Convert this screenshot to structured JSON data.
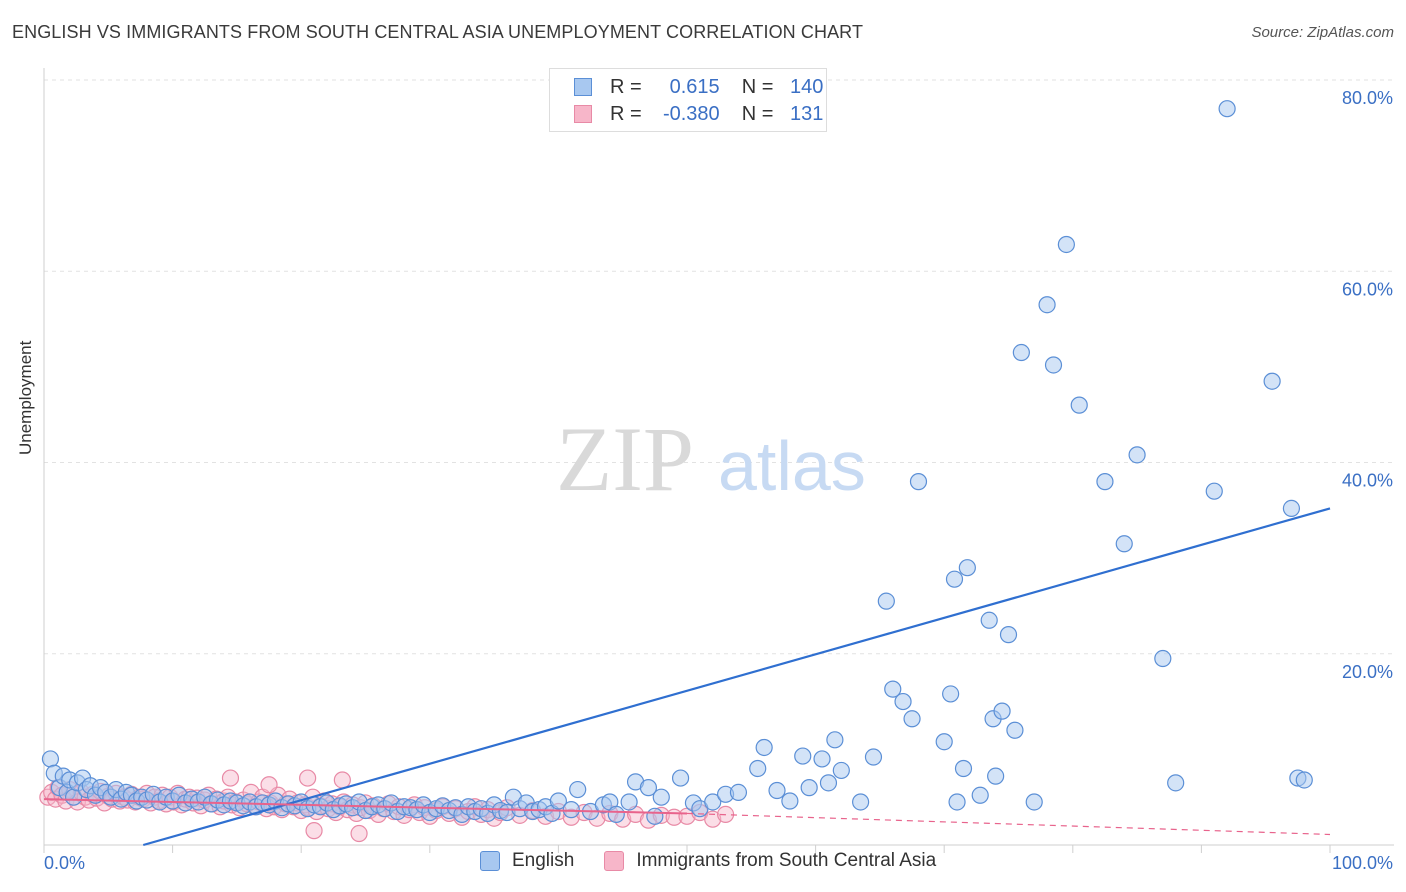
{
  "title": "ENGLISH VS IMMIGRANTS FROM SOUTH CENTRAL ASIA UNEMPLOYMENT CORRELATION CHART",
  "source": "Source: ZipAtlas.com",
  "watermark": "ZIPatlas",
  "colors": {
    "english_fill": "#a8c8f0",
    "english_stroke": "#5b8fd6",
    "english_line": "#2f6fd0",
    "immig_fill": "#f7b6c9",
    "immig_stroke": "#e88aa6",
    "immig_line": "#e8638c",
    "tick_label": "#3a6fc4",
    "grid": "#e2e2e2"
  },
  "legend_top": {
    "rows": [
      {
        "r_label": "R =",
        "r_value": "0.615",
        "n_label": "N =",
        "n_value": "140"
      },
      {
        "r_label": "R =",
        "r_value": "-0.380",
        "n_label": "N =",
        "n_value": "131"
      }
    ]
  },
  "legend_bottom": [
    "English",
    "Immigrants from South Central Asia"
  ],
  "chart_data": {
    "type": "scatter",
    "xlabel": "",
    "ylabel": "Unemployment",
    "xlim": [
      0,
      100
    ],
    "ylim": [
      0,
      82
    ],
    "x_tick_labels": {
      "left": "0.0%",
      "right": "100.0%"
    },
    "y_ticks": [
      20,
      40,
      60,
      80
    ],
    "y_tick_labels": [
      "20.0%",
      "40.0%",
      "60.0%",
      "80.0%"
    ],
    "grid": true,
    "series": [
      {
        "name": "English",
        "points": [
          [
            0.5,
            9.0
          ],
          [
            0.8,
            7.5
          ],
          [
            1.2,
            6.0
          ],
          [
            1.5,
            7.2
          ],
          [
            1.8,
            5.5
          ],
          [
            2.0,
            6.8
          ],
          [
            2.3,
            5.0
          ],
          [
            2.6,
            6.5
          ],
          [
            3.0,
            7.0
          ],
          [
            3.3,
            5.8
          ],
          [
            3.6,
            6.2
          ],
          [
            4.0,
            5.2
          ],
          [
            4.4,
            6.0
          ],
          [
            4.8,
            5.5
          ],
          [
            5.2,
            5.0
          ],
          [
            5.6,
            5.8
          ],
          [
            6.0,
            4.8
          ],
          [
            6.4,
            5.5
          ],
          [
            6.8,
            5.2
          ],
          [
            7.2,
            4.6
          ],
          [
            7.6,
            5.0
          ],
          [
            8.0,
            4.7
          ],
          [
            8.5,
            5.3
          ],
          [
            9.0,
            4.5
          ],
          [
            9.5,
            5.0
          ],
          [
            10.0,
            4.6
          ],
          [
            10.5,
            5.2
          ],
          [
            11.0,
            4.4
          ],
          [
            11.5,
            4.8
          ],
          [
            12.0,
            4.5
          ],
          [
            12.5,
            5.0
          ],
          [
            13.0,
            4.3
          ],
          [
            13.5,
            4.7
          ],
          [
            14.0,
            4.2
          ],
          [
            14.5,
            4.6
          ],
          [
            15.0,
            4.4
          ],
          [
            15.5,
            4.1
          ],
          [
            16.0,
            4.5
          ],
          [
            16.5,
            4.0
          ],
          [
            17.0,
            4.4
          ],
          [
            17.5,
            4.2
          ],
          [
            18.0,
            4.6
          ],
          [
            18.5,
            3.9
          ],
          [
            19.0,
            4.3
          ],
          [
            19.5,
            4.1
          ],
          [
            20.0,
            4.5
          ],
          [
            20.5,
            3.8
          ],
          [
            21.0,
            4.2
          ],
          [
            21.5,
            4.0
          ],
          [
            22.0,
            4.4
          ],
          [
            22.5,
            3.7
          ],
          [
            23.0,
            4.1
          ],
          [
            23.5,
            4.3
          ],
          [
            24.0,
            3.9
          ],
          [
            24.5,
            4.5
          ],
          [
            25.0,
            3.6
          ],
          [
            25.5,
            4.0
          ],
          [
            26.0,
            4.2
          ],
          [
            26.5,
            3.8
          ],
          [
            27.0,
            4.4
          ],
          [
            27.5,
            3.5
          ],
          [
            28.0,
            4.0
          ],
          [
            28.5,
            3.9
          ],
          [
            29.0,
            3.7
          ],
          [
            29.5,
            4.2
          ],
          [
            30.0,
            3.4
          ],
          [
            30.5,
            3.8
          ],
          [
            31.0,
            4.1
          ],
          [
            31.5,
            3.6
          ],
          [
            32.0,
            3.9
          ],
          [
            32.5,
            3.2
          ],
          [
            33.0,
            4.0
          ],
          [
            33.5,
            3.5
          ],
          [
            34.0,
            3.8
          ],
          [
            34.5,
            3.3
          ],
          [
            35.0,
            4.2
          ],
          [
            35.5,
            3.6
          ],
          [
            36.0,
            3.4
          ],
          [
            36.5,
            5.0
          ],
          [
            37.0,
            3.8
          ],
          [
            37.5,
            4.4
          ],
          [
            38.0,
            3.5
          ],
          [
            38.5,
            3.7
          ],
          [
            39.0,
            4.0
          ],
          [
            39.5,
            3.3
          ],
          [
            40.0,
            4.6
          ],
          [
            41.0,
            3.7
          ],
          [
            41.5,
            5.8
          ],
          [
            42.5,
            3.5
          ],
          [
            43.5,
            4.2
          ],
          [
            44.0,
            4.5
          ],
          [
            44.5,
            3.2
          ],
          [
            45.5,
            4.5
          ],
          [
            46.0,
            6.6
          ],
          [
            47.0,
            6.0
          ],
          [
            47.5,
            3.0
          ],
          [
            48.0,
            5.0
          ],
          [
            49.5,
            7.0
          ],
          [
            50.5,
            4.4
          ],
          [
            51.0,
            3.8
          ],
          [
            52.0,
            4.5
          ],
          [
            53.0,
            5.3
          ],
          [
            54.0,
            5.5
          ],
          [
            55.5,
            8.0
          ],
          [
            56.0,
            10.2
          ],
          [
            57.0,
            5.7
          ],
          [
            58.0,
            4.6
          ],
          [
            59.0,
            9.3
          ],
          [
            59.5,
            6.0
          ],
          [
            60.5,
            9.0
          ],
          [
            61.0,
            6.5
          ],
          [
            61.5,
            11.0
          ],
          [
            62.0,
            7.8
          ],
          [
            63.5,
            4.5
          ],
          [
            64.5,
            9.2
          ],
          [
            65.5,
            25.5
          ],
          [
            66.0,
            16.3
          ],
          [
            66.8,
            15.0
          ],
          [
            67.5,
            13.2
          ],
          [
            68.0,
            38.0
          ],
          [
            70.0,
            10.8
          ],
          [
            70.5,
            15.8
          ],
          [
            70.8,
            27.8
          ],
          [
            71.5,
            8.0
          ],
          [
            71.0,
            4.5
          ],
          [
            71.8,
            29.0
          ],
          [
            72.8,
            5.2
          ],
          [
            73.5,
            23.5
          ],
          [
            73.8,
            13.2
          ],
          [
            74.0,
            7.2
          ],
          [
            74.5,
            14.0
          ],
          [
            75.0,
            22.0
          ],
          [
            75.5,
            12.0
          ],
          [
            76.0,
            51.5
          ],
          [
            77.0,
            4.5
          ],
          [
            78.0,
            56.5
          ],
          [
            78.5,
            50.2
          ],
          [
            79.5,
            62.8
          ],
          [
            80.5,
            46.0
          ],
          [
            82.5,
            38.0
          ],
          [
            84.0,
            31.5
          ],
          [
            85.0,
            40.8
          ],
          [
            87.0,
            19.5
          ],
          [
            88.0,
            6.5
          ],
          [
            91.0,
            37.0
          ],
          [
            92.0,
            77.0
          ],
          [
            95.5,
            48.5
          ],
          [
            97.0,
            35.2
          ],
          [
            97.5,
            7.0
          ],
          [
            98.0,
            6.8
          ]
        ],
        "trend": [
          [
            3.0,
            -1.8
          ],
          [
            100.0,
            35.2
          ]
        ]
      },
      {
        "name": "Immigrants from South Central Asia",
        "points": [
          [
            0.3,
            5.0
          ],
          [
            0.6,
            5.5
          ],
          [
            0.9,
            4.8
          ],
          [
            1.1,
            6.0
          ],
          [
            1.4,
            5.2
          ],
          [
            1.7,
            4.6
          ],
          [
            2.0,
            5.8
          ],
          [
            2.3,
            5.0
          ],
          [
            2.6,
            4.5
          ],
          [
            2.9,
            5.5
          ],
          [
            3.2,
            5.0
          ],
          [
            3.5,
            4.7
          ],
          [
            3.8,
            5.3
          ],
          [
            4.1,
            4.9
          ],
          [
            4.4,
            5.6
          ],
          [
            4.7,
            4.4
          ],
          [
            5.0,
            5.1
          ],
          [
            5.3,
            4.8
          ],
          [
            5.6,
            5.4
          ],
          [
            5.9,
            4.6
          ],
          [
            6.2,
            5.0
          ],
          [
            6.5,
            4.7
          ],
          [
            6.8,
            5.3
          ],
          [
            7.1,
            4.5
          ],
          [
            7.4,
            5.0
          ],
          [
            7.7,
            4.8
          ],
          [
            8.0,
            5.4
          ],
          [
            8.3,
            4.4
          ],
          [
            8.6,
            5.0
          ],
          [
            8.9,
            4.6
          ],
          [
            9.2,
            5.2
          ],
          [
            9.5,
            4.3
          ],
          [
            9.8,
            5.0
          ],
          [
            10.1,
            4.5
          ],
          [
            10.4,
            5.4
          ],
          [
            10.7,
            4.2
          ],
          [
            11.0,
            4.8
          ],
          [
            11.3,
            5.0
          ],
          [
            11.6,
            4.4
          ],
          [
            11.9,
            4.9
          ],
          [
            12.2,
            4.1
          ],
          [
            12.5,
            4.7
          ],
          [
            12.8,
            5.2
          ],
          [
            13.1,
            4.3
          ],
          [
            13.4,
            4.8
          ],
          [
            13.7,
            4.0
          ],
          [
            14.0,
            4.6
          ],
          [
            14.3,
            5.0
          ],
          [
            14.6,
            4.2
          ],
          [
            14.9,
            4.5
          ],
          [
            15.2,
            3.9
          ],
          [
            15.5,
            4.7
          ],
          [
            15.8,
            4.3
          ],
          [
            16.1,
            5.5
          ],
          [
            16.4,
            4.0
          ],
          [
            16.7,
            4.5
          ],
          [
            17.0,
            5.0
          ],
          [
            17.3,
            3.8
          ],
          [
            17.6,
            4.4
          ],
          [
            17.9,
            4.0
          ],
          [
            18.2,
            5.2
          ],
          [
            18.5,
            3.7
          ],
          [
            18.8,
            4.3
          ],
          [
            19.1,
            4.8
          ],
          [
            19.4,
            4.0
          ],
          [
            19.7,
            4.4
          ],
          [
            20.0,
            3.6
          ],
          [
            20.3,
            4.2
          ],
          [
            20.6,
            3.9
          ],
          [
            20.9,
            5.0
          ],
          [
            21.2,
            3.5
          ],
          [
            21.5,
            4.1
          ],
          [
            21.8,
            4.6
          ],
          [
            22.1,
            3.8
          ],
          [
            22.4,
            4.3
          ],
          [
            22.7,
            3.4
          ],
          [
            23.0,
            4.0
          ],
          [
            23.3,
            4.5
          ],
          [
            23.6,
            3.7
          ],
          [
            24.0,
            4.2
          ],
          [
            24.3,
            3.3
          ],
          [
            24.6,
            3.9
          ],
          [
            25.0,
            4.4
          ],
          [
            25.3,
            3.6
          ],
          [
            25.6,
            4.1
          ],
          [
            26.0,
            3.2
          ],
          [
            26.4,
            3.8
          ],
          [
            26.8,
            4.3
          ],
          [
            27.2,
            3.5
          ],
          [
            27.6,
            4.0
          ],
          [
            28.0,
            3.1
          ],
          [
            28.4,
            3.7
          ],
          [
            28.8,
            4.2
          ],
          [
            29.2,
            3.4
          ],
          [
            29.6,
            3.9
          ],
          [
            30.0,
            3.0
          ],
          [
            30.5,
            3.6
          ],
          [
            31.0,
            4.0
          ],
          [
            31.5,
            3.3
          ],
          [
            32.0,
            3.8
          ],
          [
            32.5,
            2.9
          ],
          [
            33.0,
            3.5
          ],
          [
            33.5,
            4.0
          ],
          [
            34.0,
            3.2
          ],
          [
            34.5,
            3.7
          ],
          [
            35.0,
            2.8
          ],
          [
            35.5,
            3.4
          ],
          [
            36.0,
            3.9
          ],
          [
            37.0,
            3.1
          ],
          [
            38.0,
            3.6
          ],
          [
            39.0,
            3.0
          ],
          [
            40.0,
            3.5
          ],
          [
            41.0,
            2.9
          ],
          [
            42.0,
            3.4
          ],
          [
            43.0,
            2.8
          ],
          [
            44.0,
            3.3
          ],
          [
            45.0,
            2.7
          ],
          [
            46.0,
            3.2
          ],
          [
            47.0,
            2.6
          ],
          [
            48.0,
            3.1
          ],
          [
            49.0,
            2.9
          ],
          [
            50.0,
            3.0
          ],
          [
            51.0,
            3.4
          ],
          [
            52.0,
            2.7
          ],
          [
            53.0,
            3.2
          ],
          [
            14.5,
            7.0
          ],
          [
            17.5,
            6.3
          ],
          [
            20.5,
            7.0
          ],
          [
            23.2,
            6.8
          ],
          [
            24.5,
            1.2
          ],
          [
            21.0,
            1.5
          ]
        ],
        "trend": [
          [
            0.0,
            4.8
          ],
          [
            50.0,
            3.3
          ]
        ],
        "trend_dashed": [
          [
            50.0,
            3.3
          ],
          [
            100.0,
            1.1
          ]
        ]
      }
    ]
  }
}
